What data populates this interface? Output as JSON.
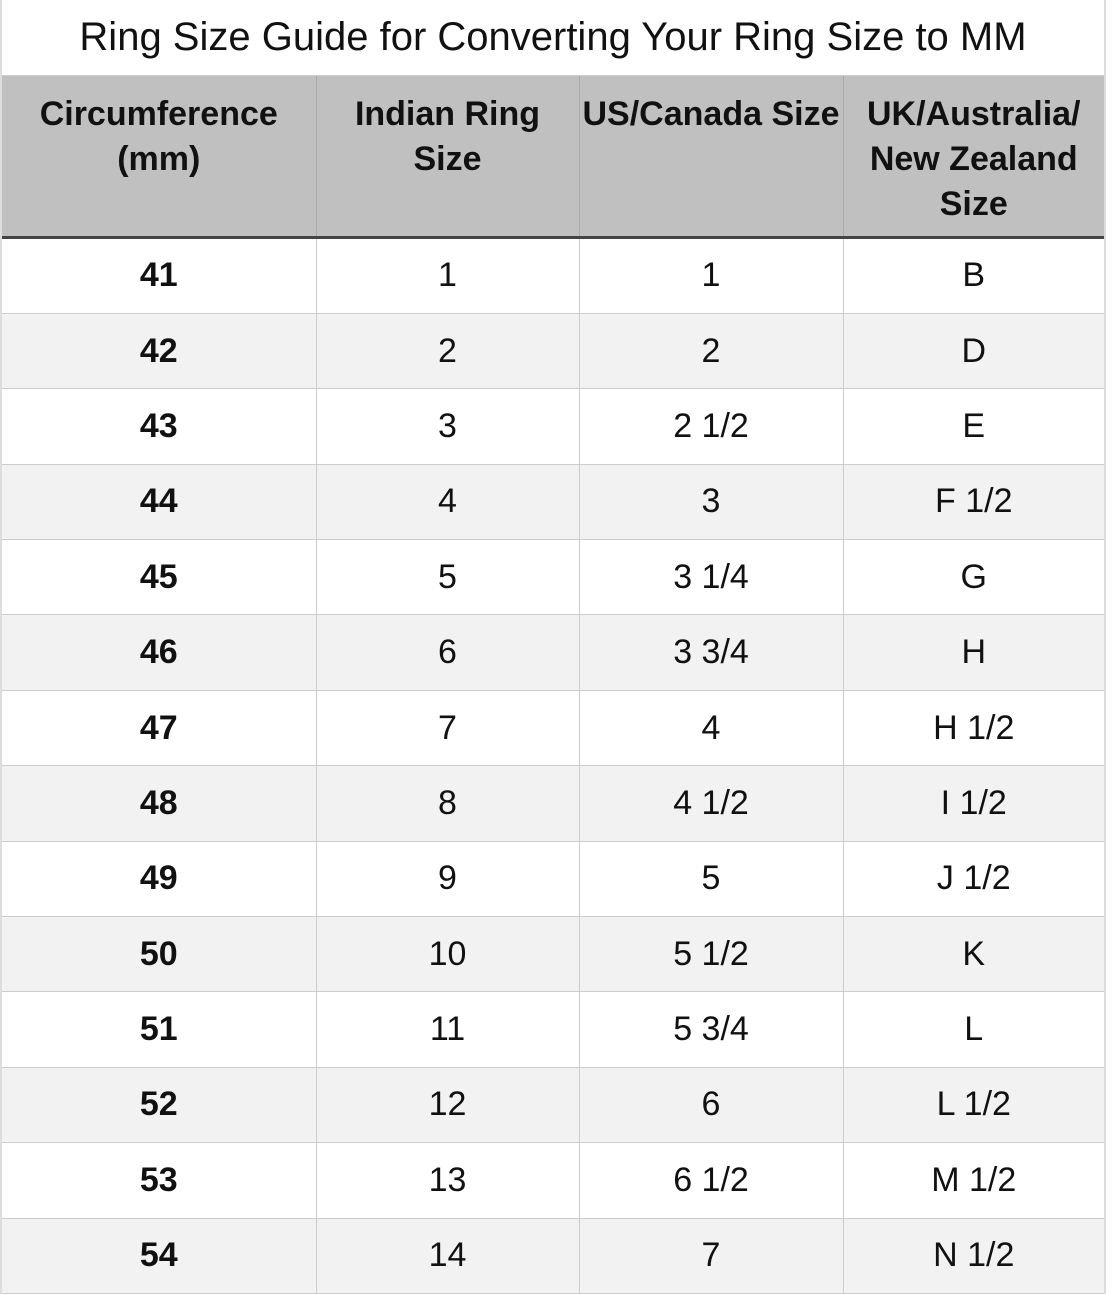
{
  "title": "Ring Size Guide for Converting Your Ring Size to MM",
  "headers": [
    "Circumference (mm)",
    "Indian Ring Size",
    "US/Canada Size",
    "UK/Australia/ New Zealand Size"
  ],
  "rows": [
    [
      "41",
      "1",
      "1",
      "B"
    ],
    [
      "42",
      "2",
      "2",
      "D"
    ],
    [
      "43",
      "3",
      "2 1/2",
      "E"
    ],
    [
      "44",
      "4",
      "3",
      "F 1/2"
    ],
    [
      "45",
      "5",
      "3 1/4",
      "G"
    ],
    [
      "46",
      "6",
      "3 3/4",
      "H"
    ],
    [
      "47",
      "7",
      "4",
      "H 1/2"
    ],
    [
      "48",
      "8",
      "4 1/2",
      "I 1/2"
    ],
    [
      "49",
      "9",
      "5",
      "J 1/2"
    ],
    [
      "50",
      "10",
      "5 1/2",
      "K"
    ],
    [
      "51",
      "11",
      "5 3/4",
      "L"
    ],
    [
      "52",
      "12",
      "6",
      "L 1/2"
    ],
    [
      "53",
      "13",
      "6 1/2",
      "M 1/2"
    ],
    [
      "54",
      "14",
      "7",
      "N 1/2"
    ]
  ],
  "colors": {
    "header_bg": "#c0c0c0",
    "alt_row_bg": "#f2f2f2"
  }
}
